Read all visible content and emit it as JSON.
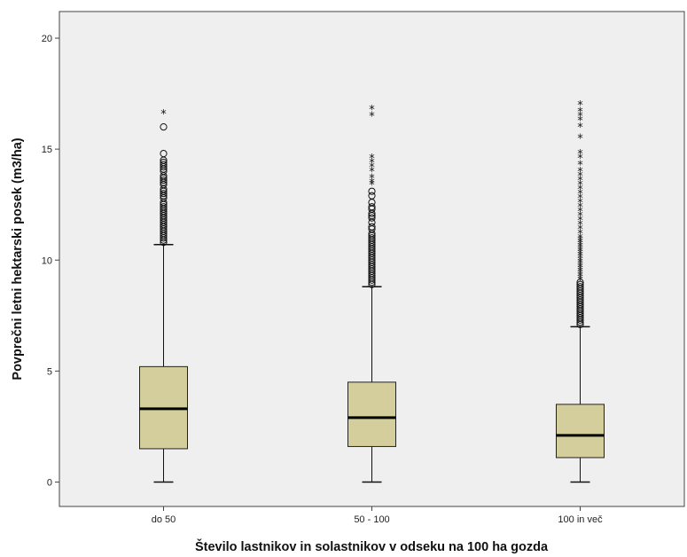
{
  "chart_data": {
    "type": "box",
    "xlabel": "Število lastnikov in solastnikov v odseku na 100 ha gozda",
    "ylabel": "Povprečni letni hektarski posek (m3/ha)",
    "ylim": [
      -1.1,
      21.2
    ],
    "yticks": [
      0,
      5,
      10,
      15,
      20
    ],
    "grid": false,
    "colors": {
      "box": "#d4ce9c",
      "background": "#efefef"
    },
    "categories": [
      "do 50",
      "50 - 100",
      "100 in več"
    ],
    "boxes": [
      {
        "category": "do 50",
        "whisker_low": 0,
        "q1": 1.5,
        "median": 3.3,
        "q3": 5.2,
        "whisker_high": 10.7,
        "outliers_circle": [
          10.8,
          10.9,
          11.0,
          11.1,
          11.2,
          11.3,
          11.4,
          11.5,
          11.6,
          11.7,
          11.8,
          11.9,
          12.0,
          12.1,
          12.2,
          12.3,
          12.4,
          12.5,
          12.6,
          12.8,
          12.9,
          13.0,
          13.1,
          13.2,
          13.4,
          13.5,
          13.6,
          13.7,
          13.8,
          14.0,
          14.1,
          14.2,
          14.3,
          14.4,
          14.5,
          14.8,
          16.0
        ],
        "outliers_star": [
          16.6
        ]
      },
      {
        "category": "50 - 100",
        "whisker_low": 0,
        "q1": 1.6,
        "median": 2.9,
        "q3": 4.5,
        "whisker_high": 8.8,
        "outliers_circle": [
          8.9,
          9.0,
          9.1,
          9.2,
          9.3,
          9.4,
          9.5,
          9.6,
          9.7,
          9.8,
          9.9,
          10.0,
          10.1,
          10.2,
          10.3,
          10.4,
          10.5,
          10.6,
          10.7,
          10.8,
          10.9,
          11.0,
          11.1,
          11.2,
          11.4,
          11.5,
          11.7,
          11.9,
          12.0,
          12.1,
          12.3,
          12.4,
          12.6,
          12.9,
          13.1
        ],
        "outliers_star": [
          13.4,
          13.5,
          13.7,
          14.0,
          14.2,
          14.4,
          14.6,
          16.5,
          16.8
        ]
      },
      {
        "category": "100 in več",
        "whisker_low": 0,
        "q1": 1.1,
        "median": 2.1,
        "q3": 3.5,
        "whisker_high": 7.0,
        "outliers_circle": [
          7.1,
          7.2,
          7.3,
          7.4,
          7.5,
          7.6,
          7.7,
          7.8,
          7.9,
          8.0,
          8.1,
          8.2,
          8.3,
          8.4,
          8.5,
          8.6,
          8.7,
          8.8,
          8.9,
          9.0
        ],
        "outliers_star": [
          9.1,
          9.2,
          9.3,
          9.4,
          9.5,
          9.6,
          9.7,
          9.8,
          9.9,
          10.0,
          10.1,
          10.2,
          10.3,
          10.4,
          10.5,
          10.6,
          10.7,
          10.8,
          10.9,
          11.0,
          11.2,
          11.4,
          11.6,
          11.8,
          12.0,
          12.2,
          12.4,
          12.6,
          12.8,
          13.0,
          13.2,
          13.4,
          13.6,
          13.8,
          14.0,
          14.3,
          14.6,
          14.8,
          15.5,
          16.0,
          16.3,
          16.5,
          16.7,
          17.0
        ]
      }
    ]
  }
}
